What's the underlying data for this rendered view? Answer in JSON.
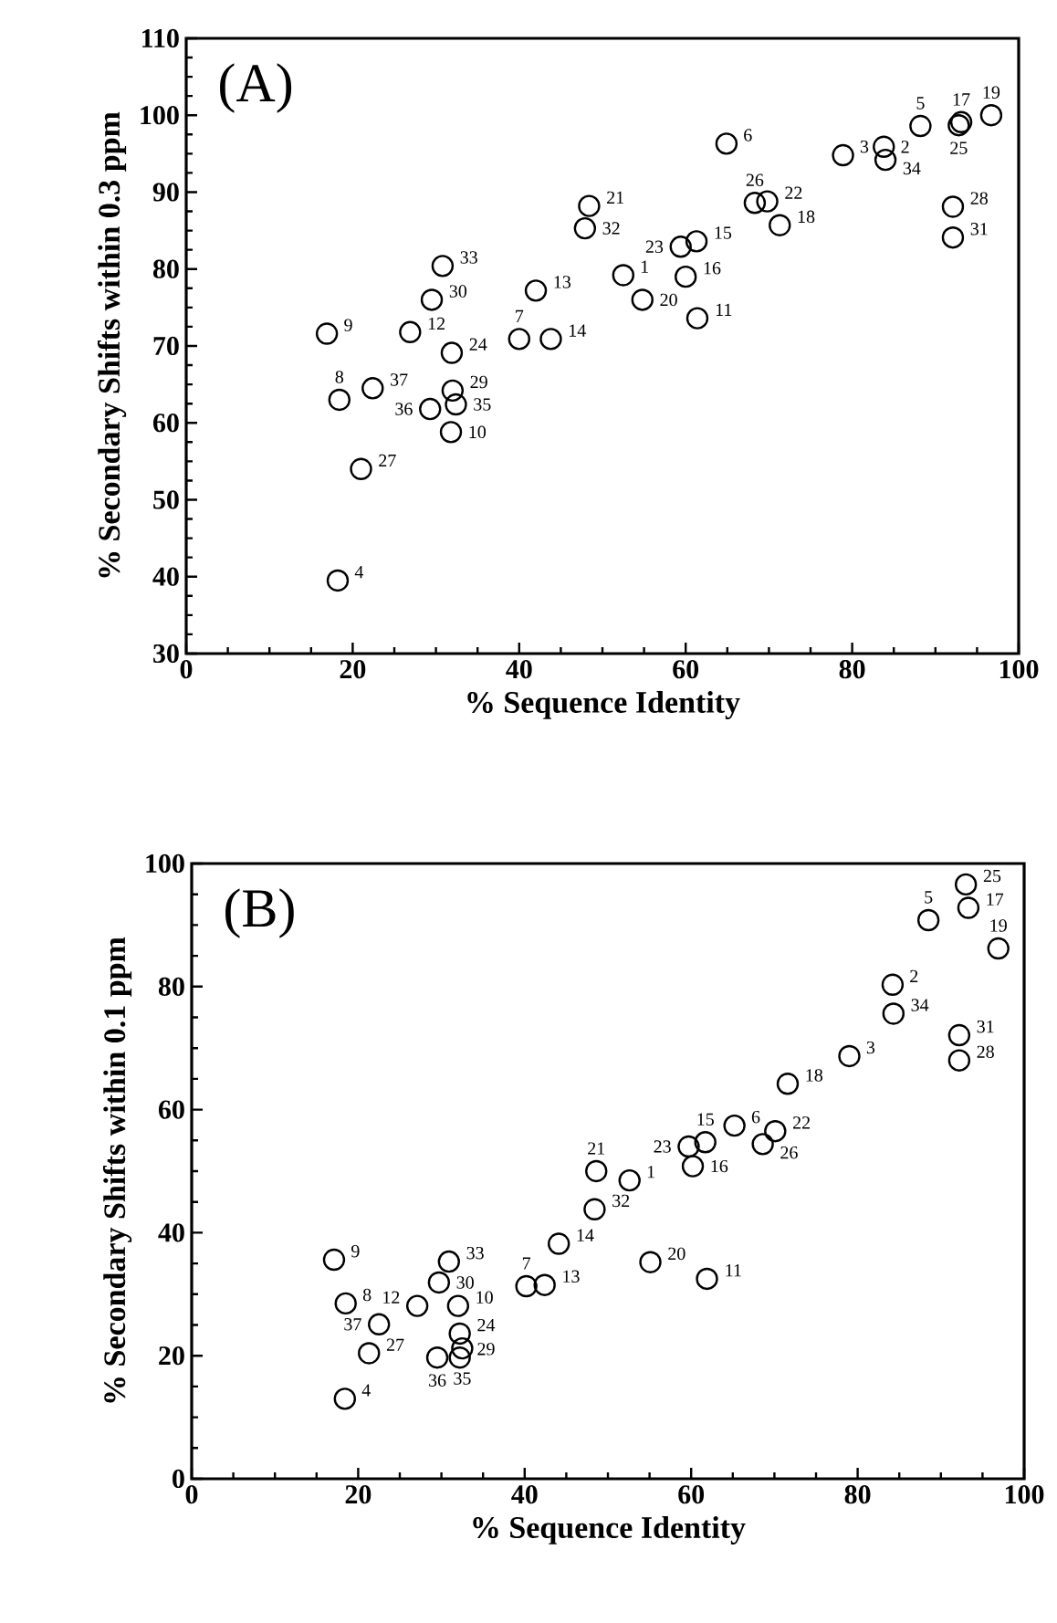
{
  "chart_data": [
    {
      "type": "scatter",
      "xlabel": "% Sequence Identity",
      "ylabel": "% Secondary Shifts within 0.3 ppm",
      "marker": "circle",
      "color": "#000000",
      "xlim": [
        0,
        100
      ],
      "xticks": [
        0,
        20,
        40,
        60,
        80,
        100
      ],
      "ylim": [
        30,
        110
      ],
      "yticks": [
        30,
        40,
        50,
        60,
        70,
        80,
        90,
        100,
        110
      ],
      "x": [
        52.5,
        83.8,
        78.9,
        18.2,
        88.2,
        64.9,
        40.0,
        18.4,
        16.9,
        31.8,
        61.4,
        26.9,
        42.0,
        43.8,
        61.3,
        60.0,
        93.1,
        71.3,
        96.7,
        54.8,
        48.4,
        69.8,
        59.4,
        31.9,
        92.8,
        68.3,
        21.0,
        92.1,
        32.0,
        29.5,
        92.1,
        47.9,
        30.8,
        84.0,
        32.4,
        29.3,
        22.4
      ],
      "values": [
        79.2,
        95.9,
        94.8,
        39.5,
        98.6,
        96.3,
        70.9,
        63.0,
        71.6,
        58.8,
        73.6,
        71.8,
        77.2,
        70.9,
        83.6,
        79.0,
        99.1,
        85.7,
        100.0,
        76.0,
        88.2,
        88.8,
        82.9,
        69.1,
        98.7,
        88.6,
        54.0,
        88.1,
        64.2,
        76.0,
        84.1,
        85.3,
        80.4,
        94.2,
        62.4,
        61.8,
        64.5
      ],
      "annotations": [
        "(A)",
        {
          "text": "1",
          "x": 52.5,
          "y": 79.2
        },
        {
          "text": "2",
          "x": 83.8,
          "y": 95.9
        },
        {
          "text": "3",
          "x": 78.9,
          "y": 94.8
        },
        {
          "text": "4",
          "x": 18.2,
          "y": 39.5
        },
        {
          "text": "5",
          "x": 88.2,
          "y": 98.6
        },
        {
          "text": "6",
          "x": 64.9,
          "y": 96.3
        },
        {
          "text": "7",
          "x": 40.0,
          "y": 70.9
        },
        {
          "text": "8",
          "x": 18.4,
          "y": 63.0
        },
        {
          "text": "9",
          "x": 16.9,
          "y": 71.6
        },
        {
          "text": "10",
          "x": 31.8,
          "y": 58.8
        },
        {
          "text": "11",
          "x": 61.4,
          "y": 73.6
        },
        {
          "text": "12",
          "x": 26.9,
          "y": 71.8
        },
        {
          "text": "13",
          "x": 42.0,
          "y": 77.2
        },
        {
          "text": "14",
          "x": 43.8,
          "y": 70.9
        },
        {
          "text": "15",
          "x": 61.3,
          "y": 83.6
        },
        {
          "text": "16",
          "x": 60.0,
          "y": 79.0
        },
        {
          "text": "17",
          "x": 93.1,
          "y": 99.1
        },
        {
          "text": "18",
          "x": 71.3,
          "y": 85.7
        },
        {
          "text": "19",
          "x": 96.7,
          "y": 100.0
        },
        {
          "text": "20",
          "x": 54.8,
          "y": 76.0
        },
        {
          "text": "21",
          "x": 48.4,
          "y": 88.2
        },
        {
          "text": "22",
          "x": 69.8,
          "y": 88.8
        },
        {
          "text": "23",
          "x": 59.4,
          "y": 82.9
        },
        {
          "text": "24",
          "x": 31.9,
          "y": 69.1
        },
        {
          "text": "25",
          "x": 92.8,
          "y": 98.7
        },
        {
          "text": "26",
          "x": 68.3,
          "y": 88.6
        },
        {
          "text": "27",
          "x": 21.0,
          "y": 54.0
        },
        {
          "text": "28",
          "x": 92.1,
          "y": 88.1
        },
        {
          "text": "29",
          "x": 32.0,
          "y": 64.2
        },
        {
          "text": "30",
          "x": 29.5,
          "y": 76.0
        },
        {
          "text": "31",
          "x": 92.1,
          "y": 84.1
        },
        {
          "text": "32",
          "x": 47.9,
          "y": 85.3
        },
        {
          "text": "33",
          "x": 30.8,
          "y": 80.4
        },
        {
          "text": "34",
          "x": 84.0,
          "y": 94.2
        },
        {
          "text": "35",
          "x": 32.4,
          "y": 62.4
        },
        {
          "text": "36",
          "x": 29.3,
          "y": 61.8
        },
        {
          "text": "37",
          "x": 22.4,
          "y": 64.5
        }
      ]
    },
    {
      "type": "scatter",
      "xlabel": "% Sequence Identity",
      "ylabel": "% Secondary Shifts within 0.1 ppm",
      "marker": "circle",
      "color": "#000000",
      "xlim": [
        0,
        100
      ],
      "xticks": [
        0,
        20,
        40,
        60,
        80,
        100
      ],
      "ylim": [
        0,
        100
      ],
      "yticks": [
        0,
        20,
        40,
        60,
        80,
        100
      ],
      "x": [
        52.6,
        84.2,
        79.0,
        18.4,
        88.5,
        65.2,
        40.2,
        18.5,
        17.1,
        32.0,
        61.9,
        27.1,
        42.4,
        44.1,
        61.7,
        60.2,
        93.3,
        71.6,
        96.9,
        55.1,
        48.6,
        70.1,
        59.7,
        32.2,
        93.0,
        68.6,
        21.3,
        92.2,
        32.2,
        29.7,
        92.2,
        48.4,
        30.9,
        84.3,
        32.5,
        29.5,
        22.5
      ],
      "values": [
        48.5,
        80.3,
        68.7,
        13.0,
        90.8,
        57.4,
        31.3,
        28.5,
        35.6,
        28.1,
        32.5,
        28.1,
        31.5,
        38.2,
        54.7,
        50.8,
        92.8,
        64.2,
        86.2,
        35.2,
        50.0,
        56.5,
        54.0,
        23.6,
        96.6,
        54.4,
        20.4,
        68.0,
        19.7,
        31.9,
        72.1,
        43.8,
        35.3,
        75.6,
        21.2,
        19.7,
        25.1
      ],
      "annotations": [
        "(B)",
        {
          "text": "1",
          "x": 52.6,
          "y": 48.5
        },
        {
          "text": "2",
          "x": 84.2,
          "y": 80.3
        },
        {
          "text": "3",
          "x": 79.0,
          "y": 68.7
        },
        {
          "text": "4",
          "x": 18.4,
          "y": 13.0
        },
        {
          "text": "5",
          "x": 88.5,
          "y": 90.8
        },
        {
          "text": "6",
          "x": 65.2,
          "y": 57.4
        },
        {
          "text": "7",
          "x": 40.2,
          "y": 31.3
        },
        {
          "text": "8",
          "x": 18.5,
          "y": 28.5
        },
        {
          "text": "9",
          "x": 17.1,
          "y": 35.6
        },
        {
          "text": "10",
          "x": 32.0,
          "y": 28.1
        },
        {
          "text": "11",
          "x": 61.9,
          "y": 32.5
        },
        {
          "text": "12",
          "x": 27.1,
          "y": 28.1
        },
        {
          "text": "13",
          "x": 42.4,
          "y": 31.5
        },
        {
          "text": "14",
          "x": 44.1,
          "y": 38.2
        },
        {
          "text": "15",
          "x": 61.7,
          "y": 54.7
        },
        {
          "text": "16",
          "x": 60.2,
          "y": 50.8
        },
        {
          "text": "17",
          "x": 93.3,
          "y": 92.8
        },
        {
          "text": "18",
          "x": 71.6,
          "y": 64.2
        },
        {
          "text": "19",
          "x": 96.9,
          "y": 86.2
        },
        {
          "text": "20",
          "x": 55.1,
          "y": 35.2
        },
        {
          "text": "21",
          "x": 48.6,
          "y": 50.0
        },
        {
          "text": "22",
          "x": 70.1,
          "y": 56.5
        },
        {
          "text": "23",
          "x": 59.7,
          "y": 54.0
        },
        {
          "text": "24",
          "x": 32.2,
          "y": 23.6
        },
        {
          "text": "25",
          "x": 93.0,
          "y": 96.6
        },
        {
          "text": "26",
          "x": 68.6,
          "y": 54.4
        },
        {
          "text": "27",
          "x": 21.3,
          "y": 20.4
        },
        {
          "text": "28",
          "x": 92.2,
          "y": 68.0
        },
        {
          "text": "29",
          "x": 32.2,
          "y": 19.7
        },
        {
          "text": "30",
          "x": 29.7,
          "y": 31.9
        },
        {
          "text": "31",
          "x": 92.2,
          "y": 72.1
        },
        {
          "text": "32",
          "x": 48.4,
          "y": 43.8
        },
        {
          "text": "33",
          "x": 30.9,
          "y": 35.3
        },
        {
          "text": "34",
          "x": 84.3,
          "y": 75.6
        },
        {
          "text": "35",
          "x": 32.5,
          "y": 21.2
        },
        {
          "text": "36",
          "x": 29.5,
          "y": 19.7
        },
        {
          "text": "37",
          "x": 22.5,
          "y": 25.1
        }
      ]
    }
  ]
}
